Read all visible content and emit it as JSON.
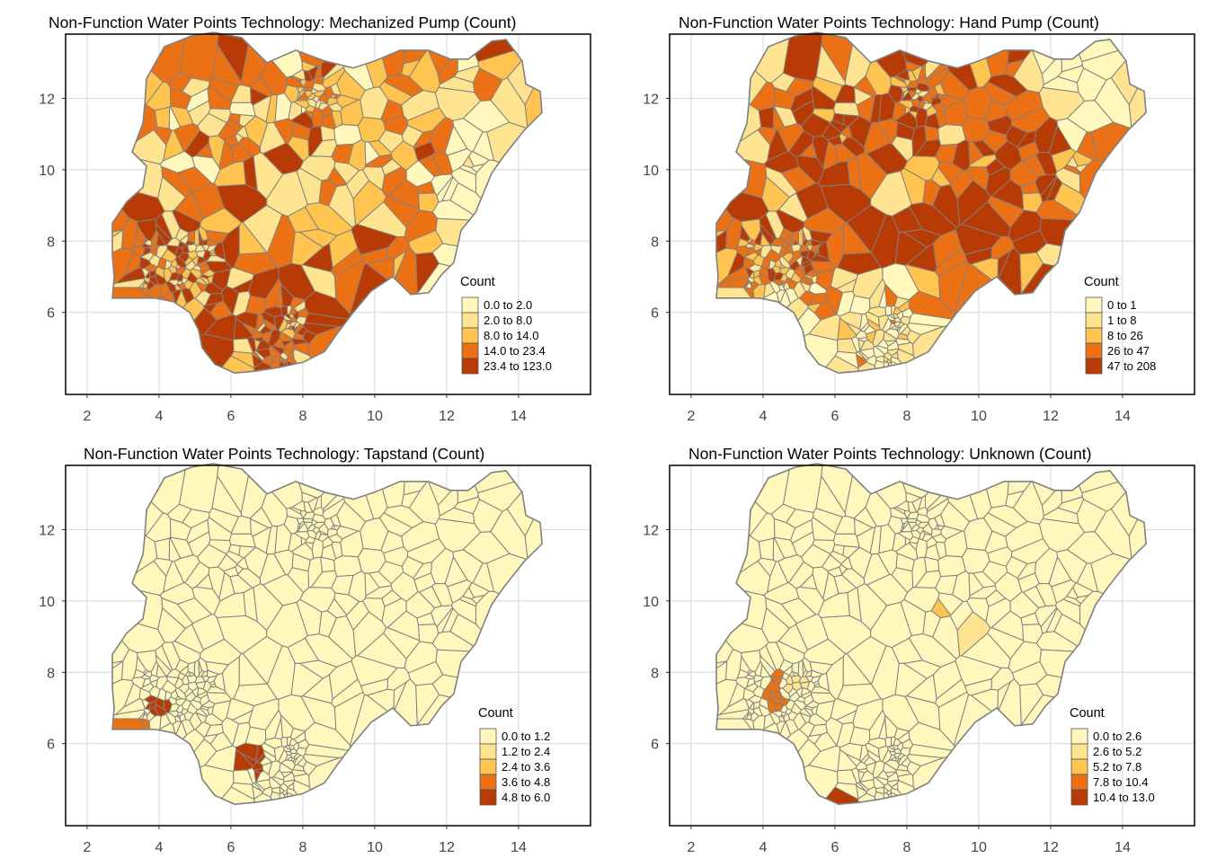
{
  "figure": {
    "panels": [
      {
        "title": "Non-Function Water Points Technology: Mechanized Pump (Count)",
        "legend_title": "Count",
        "classes": [
          "0.0 to 2.0",
          "2.0 to 8.0",
          "8.0 to 14.0",
          "14.0 to 23.4",
          "23.4 to 123.0"
        ],
        "class_shares": [
          0.25,
          0.25,
          0.18,
          0.16,
          0.16
        ]
      },
      {
        "title": "Non-Function Water Points Technology: Hand Pump (Count)",
        "legend_title": "Count",
        "classes": [
          "0 to 1",
          "1 to 8",
          "8 to 26",
          "26 to 47",
          "47 to 208"
        ],
        "class_shares": [
          0.3,
          0.22,
          0.16,
          0.16,
          0.16
        ]
      },
      {
        "title": "Non-Function Water Points Technology: Tapstand (Count)",
        "legend_title": "Count",
        "classes": [
          "0.0 to 1.2",
          "1.2 to 2.4",
          "2.4 to 3.6",
          "3.6 to 4.8",
          "4.8 to 6.0"
        ],
        "class_shares": [
          0.99,
          0.0,
          0.0,
          0.0,
          0.01
        ]
      },
      {
        "title": "Non-Function Water Points Technology: Unknown (Count)",
        "legend_title": "Count",
        "classes": [
          "0.0 to 2.6",
          "2.6 to 5.2",
          "5.2 to 7.8",
          "7.8 to 10.4",
          "10.4 to 13.0"
        ],
        "class_shares": [
          0.97,
          0.015,
          0.008,
          0.0,
          0.007
        ]
      }
    ],
    "x_ticks": [
      "2",
      "4",
      "6",
      "8",
      "10",
      "12",
      "14"
    ],
    "y_ticks": [
      "12",
      "10",
      "8",
      "6"
    ],
    "x_tick_values": [
      2,
      4,
      6,
      8,
      10,
      12,
      14
    ],
    "y_tick_values": [
      12,
      10,
      8,
      6
    ],
    "xlim": [
      1.4,
      16.0
    ],
    "ylim": [
      3.7,
      13.8
    ],
    "palette": [
      "#FFF7BC",
      "#FEE391",
      "#FEC44F",
      "#EC7014",
      "#B83A04"
    ],
    "border_color": "#808080"
  }
}
